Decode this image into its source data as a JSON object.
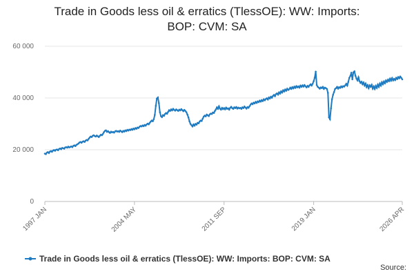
{
  "chart_data": {
    "type": "line",
    "title": "Trade in Goods less oil & erratics (TlessOE): WW: Imports: BOP: CVM: SA",
    "source": "Source:",
    "categories": [
      "1997 JAN",
      null,
      null,
      null,
      null,
      null,
      null,
      null,
      null,
      null,
      null,
      null,
      null,
      null,
      null,
      null,
      null,
      null,
      null,
      null,
      null,
      null,
      null,
      null,
      null,
      null,
      null,
      null,
      null,
      null,
      null,
      null,
      null,
      null,
      null,
      null,
      null,
      null,
      null,
      null,
      null,
      null,
      null,
      null,
      null,
      null,
      null,
      null,
      null,
      null,
      null,
      null,
      null,
      null,
      null,
      null,
      null,
      null,
      null,
      null,
      null,
      null,
      null,
      null,
      null,
      null,
      null,
      null,
      null,
      null,
      null,
      null,
      null,
      null,
      null,
      null,
      null,
      null,
      null,
      null,
      null,
      null,
      null,
      null,
      null,
      null,
      null,
      null,
      "2004 MAY",
      null,
      null,
      null,
      null,
      null,
      null,
      null,
      null,
      null,
      null,
      null,
      null,
      null,
      null,
      null,
      null,
      null,
      null,
      null,
      null,
      null,
      null,
      null,
      null,
      null,
      null,
      null,
      null,
      null,
      null,
      null,
      null,
      null,
      null,
      null,
      null,
      null,
      null,
      null,
      null,
      null,
      null,
      null,
      null,
      null,
      null,
      null,
      null,
      null,
      null,
      null,
      null,
      null,
      null,
      null,
      null,
      null,
      null,
      null,
      null,
      null,
      null,
      null,
      null,
      null,
      null,
      null,
      null,
      null,
      null,
      null,
      null,
      null,
      null,
      null,
      null,
      null,
      null,
      null,
      null,
      null,
      null,
      null,
      null,
      null,
      null,
      null,
      "2011 SEP",
      null,
      null,
      null,
      null,
      null,
      null,
      null,
      null,
      null,
      null,
      null,
      null,
      null,
      null,
      null,
      null,
      null,
      null,
      null,
      null,
      null,
      null,
      null,
      null,
      null,
      null,
      null,
      null,
      null,
      null,
      null,
      null,
      null,
      null,
      null,
      null,
      null,
      null,
      null,
      null,
      null,
      null,
      null,
      null,
      null,
      null,
      null,
      null,
      null,
      null,
      null,
      null,
      null,
      null,
      null,
      null,
      null,
      null,
      null,
      null,
      null,
      null,
      null,
      null,
      null,
      null,
      null,
      null,
      null,
      null,
      null,
      null,
      null,
      null,
      null,
      null,
      null,
      null,
      null,
      null,
      null,
      null,
      null,
      null,
      null,
      null,
      null,
      "2019 JAN",
      null,
      null,
      null,
      null,
      null,
      null,
      null,
      null,
      null,
      null,
      null,
      null,
      null,
      null,
      null,
      null,
      null,
      null,
      null,
      null,
      null,
      null,
      null,
      null,
      null,
      null,
      null,
      null,
      null,
      null,
      null,
      null,
      null,
      null,
      null,
      null,
      null,
      null,
      null,
      null,
      null,
      null,
      null,
      null,
      null,
      null,
      null,
      null,
      null,
      null,
      null,
      null,
      null,
      null,
      null,
      null,
      null,
      null,
      null,
      null,
      null,
      null,
      null,
      null,
      null,
      null,
      null,
      null,
      null,
      null,
      null,
      null,
      null,
      null,
      null,
      null,
      null,
      null,
      null,
      null,
      null,
      null,
      null,
      null,
      null,
      null,
      "2026 APR"
    ],
    "series": [
      {
        "name": "Trade in Goods less oil & erratics (TlessOE): WW: Imports: BOP: CVM: SA",
        "color": "#1f7bc1",
        "values": [
          18500,
          18300,
          18900,
          19100,
          18700,
          19300,
          19500,
          19200,
          19700,
          19900,
          19600,
          20000,
          20100,
          19800,
          20300,
          20500,
          20200,
          20700,
          20600,
          20400,
          20900,
          21000,
          20800,
          21200,
          20900,
          21100,
          21300,
          21000,
          21500,
          21700,
          21400,
          21900,
          22100,
          22400,
          22800,
          23000,
          22700,
          23100,
          23300,
          23000,
          23500,
          23800,
          23600,
          24200,
          24700,
          25100,
          24900,
          25400,
          25600,
          25300,
          25100,
          25500,
          25200,
          24900,
          25400,
          25800,
          25600,
          26100,
          26800,
          27300,
          27500,
          26900,
          27200,
          26800,
          26500,
          27000,
          26700,
          26900,
          26600,
          27100,
          27300,
          27000,
          27200,
          26900,
          27400,
          27100,
          26800,
          27300,
          27000,
          27500,
          27200,
          27700,
          27400,
          27800,
          27600,
          28000,
          27700,
          28200,
          27900,
          28400,
          28100,
          28600,
          28400,
          28900,
          29200,
          29000,
          29400,
          29100,
          29600,
          29300,
          29800,
          30100,
          29800,
          30400,
          30900,
          31300,
          31000,
          31800,
          33500,
          37000,
          39800,
          40200,
          38000,
          34500,
          33000,
          32600,
          33400,
          33100,
          33800,
          34200,
          33900,
          34600,
          35300,
          35000,
          35600,
          35200,
          35800,
          35400,
          35100,
          35600,
          35300,
          35000,
          35500,
          35200,
          35700,
          35300,
          34900,
          35400,
          35000,
          34500,
          33600,
          32500,
          31000,
          30000,
          29500,
          29000,
          29800,
          29300,
          30000,
          29700,
          30400,
          30200,
          30900,
          31300,
          31100,
          32000,
          32800,
          33200,
          32900,
          33600,
          33300,
          33000,
          33700,
          34000,
          33800,
          34400,
          34200,
          35000,
          35600,
          36400,
          35800,
          36800,
          35900,
          35500,
          36200,
          35700,
          36100,
          35600,
          36300,
          35800,
          36000,
          35500,
          36200,
          36600,
          36100,
          35800,
          36400,
          36100,
          36500,
          35900,
          36300,
          36000,
          36200,
          35800,
          36400,
          36100,
          36700,
          36300,
          35900,
          36500,
          36200,
          36800,
          37400,
          37900,
          37600,
          38200,
          37900,
          38500,
          38100,
          38700,
          38400,
          39000,
          38600,
          39200,
          38800,
          39500,
          39100,
          39600,
          39900,
          39400,
          40200,
          39800,
          40500,
          40100,
          40800,
          41200,
          40700,
          41500,
          41800,
          41300,
          42200,
          41700,
          42600,
          42100,
          43000,
          42500,
          43300,
          42800,
          43600,
          43100,
          43400,
          44000,
          43500,
          44200,
          43700,
          44400,
          43900,
          44600,
          44100,
          44500,
          44000,
          44800,
          44300,
          44900,
          44400,
          45000,
          44500,
          44100,
          44700,
          44300,
          44900,
          45300,
          44800,
          45500,
          46500,
          47800,
          50200,
          45000,
          44300,
          44000,
          43600,
          44100,
          43800,
          44300,
          43500,
          44000,
          43800,
          43500,
          42000,
          32500,
          31800,
          36000,
          39500,
          41200,
          42300,
          43500,
          43800,
          44300,
          43600,
          44200,
          43900,
          44500,
          44100,
          44600,
          44400,
          44900,
          45500,
          44800,
          46200,
          47800,
          48500,
          49800,
          47200,
          49900,
          50300,
          48600,
          47500,
          46800,
          48000,
          46500,
          45800,
          46300,
          45300,
          46000,
          44800,
          45600,
          44200,
          45000,
          43800,
          44900,
          44300,
          45100,
          43600,
          44500,
          43500,
          44700,
          43900,
          45200,
          44300,
          45600,
          44800,
          46100,
          45300,
          46400,
          45700,
          46800,
          46200,
          47100,
          46500,
          47500,
          46700,
          47700,
          46800,
          47400,
          46900,
          47800,
          47300,
          48100,
          47600,
          48300,
          47800,
          47200
        ]
      }
    ],
    "ylim": [
      0,
      60000
    ],
    "yticks": [
      0,
      {
        "value": 20000,
        "label": "20 000"
      },
      {
        "value": 40000,
        "label": "40 000"
      },
      {
        "value": 60000,
        "label": "60 000"
      }
    ],
    "grid": true,
    "legend": "bottom"
  }
}
